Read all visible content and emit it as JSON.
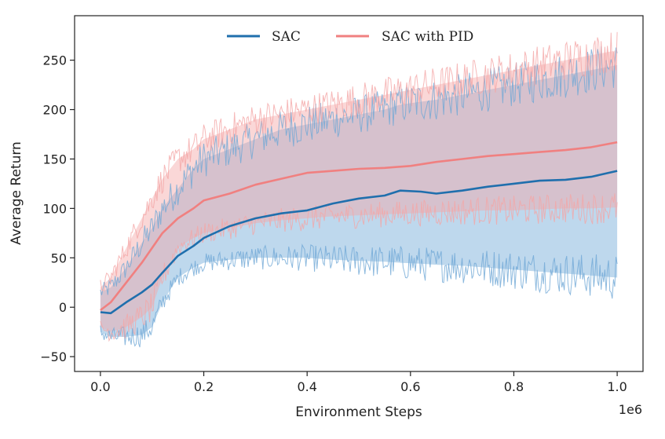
{
  "chart_data": {
    "type": "line",
    "title": "",
    "xlabel": "Environment Steps",
    "ylabel": "Average Return",
    "x_scale_label": "1e6",
    "xlim": [
      -0.05,
      1.05
    ],
    "ylim": [
      -65,
      295
    ],
    "x_ticks": [
      0.0,
      0.2,
      0.4,
      0.6,
      0.8,
      1.0
    ],
    "x_tick_labels": [
      "0.0",
      "0.2",
      "0.4",
      "0.6",
      "0.8",
      "1.0"
    ],
    "y_ticks": [
      -50,
      0,
      50,
      100,
      150,
      200,
      250
    ],
    "y_tick_labels": [
      "−50",
      "0",
      "50",
      "100",
      "150",
      "200",
      "250"
    ],
    "grid": false,
    "legend_position": "top-center",
    "series": [
      {
        "name": "SAC",
        "color": "#1f6fad",
        "band_color": "#6fa8d6",
        "x": [
          0.0,
          0.02,
          0.05,
          0.08,
          0.1,
          0.12,
          0.15,
          0.18,
          0.2,
          0.25,
          0.3,
          0.35,
          0.4,
          0.45,
          0.5,
          0.55,
          0.58,
          0.62,
          0.65,
          0.7,
          0.75,
          0.8,
          0.85,
          0.9,
          0.95,
          1.0
        ],
        "mean": [
          -5,
          -6,
          5,
          15,
          23,
          35,
          52,
          62,
          70,
          82,
          90,
          95,
          98,
          105,
          110,
          113,
          118,
          117,
          115,
          118,
          122,
          125,
          128,
          129,
          132,
          138
        ],
        "lower": [
          -25,
          -30,
          -30,
          -28,
          -20,
          5,
          30,
          40,
          45,
          48,
          50,
          50,
          50,
          48,
          47,
          46,
          45,
          44,
          43,
          42,
          40,
          38,
          36,
          34,
          32,
          30
        ],
        "upper": [
          15,
          20,
          40,
          65,
          80,
          100,
          120,
          140,
          150,
          160,
          170,
          180,
          185,
          190,
          195,
          200,
          205,
          208,
          210,
          215,
          220,
          225,
          230,
          235,
          240,
          245
        ]
      },
      {
        "name": "SAC with PID",
        "color": "#f08080",
        "band_color": "#f4a6a6",
        "x": [
          0.0,
          0.02,
          0.05,
          0.08,
          0.1,
          0.12,
          0.15,
          0.18,
          0.2,
          0.25,
          0.3,
          0.35,
          0.4,
          0.45,
          0.5,
          0.55,
          0.6,
          0.65,
          0.7,
          0.75,
          0.8,
          0.85,
          0.9,
          0.95,
          1.0
        ],
        "mean": [
          -3,
          5,
          25,
          45,
          60,
          75,
          90,
          100,
          108,
          115,
          124,
          130,
          136,
          138,
          140,
          141,
          143,
          147,
          150,
          153,
          155,
          157,
          159,
          162,
          167
        ],
        "lower": [
          -20,
          -25,
          -20,
          -10,
          0,
          30,
          60,
          70,
          75,
          80,
          85,
          88,
          90,
          92,
          93,
          94,
          95,
          96,
          97,
          98,
          98,
          99,
          100,
          100,
          101
        ],
        "upper": [
          20,
          30,
          60,
          90,
          110,
          130,
          150,
          160,
          170,
          180,
          190,
          195,
          200,
          205,
          210,
          215,
          220,
          225,
          230,
          235,
          240,
          245,
          250,
          255,
          260
        ]
      }
    ]
  }
}
